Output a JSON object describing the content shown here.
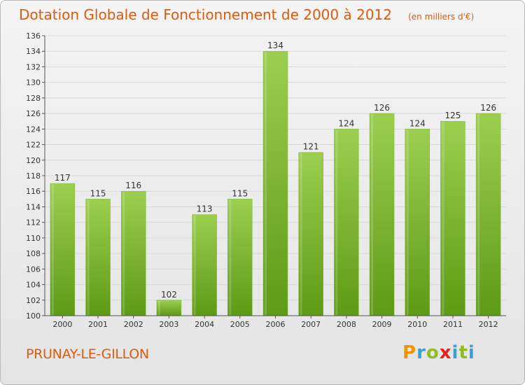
{
  "title": "Dotation Globale de Fonctionnement de 2000 à 2012",
  "unit_note": "(en milliers d'€)",
  "commune": "PRUNAY-LE-GILLON",
  "brand": "Proxiti",
  "colors": {
    "bar_top": "#9ccf50",
    "bar_bottom": "#5e9a14",
    "title": "#e05a0c",
    "grid": "#d9d9d9",
    "axis": "#555555"
  },
  "chart_data": {
    "type": "bar",
    "categories": [
      "2000",
      "2001",
      "2002",
      "2003",
      "2004",
      "2005",
      "2006",
      "2007",
      "2008",
      "2009",
      "2010",
      "2011",
      "2012"
    ],
    "values": [
      117,
      115,
      116,
      102,
      113,
      115,
      134,
      121,
      124,
      126,
      124,
      125,
      126
    ],
    "ylim": [
      100,
      136
    ],
    "yticks": [
      100,
      102,
      104,
      106,
      108,
      110,
      112,
      114,
      116,
      118,
      120,
      122,
      124,
      126,
      128,
      130,
      132,
      134,
      136
    ],
    "grid": true,
    "data_labels": true
  }
}
